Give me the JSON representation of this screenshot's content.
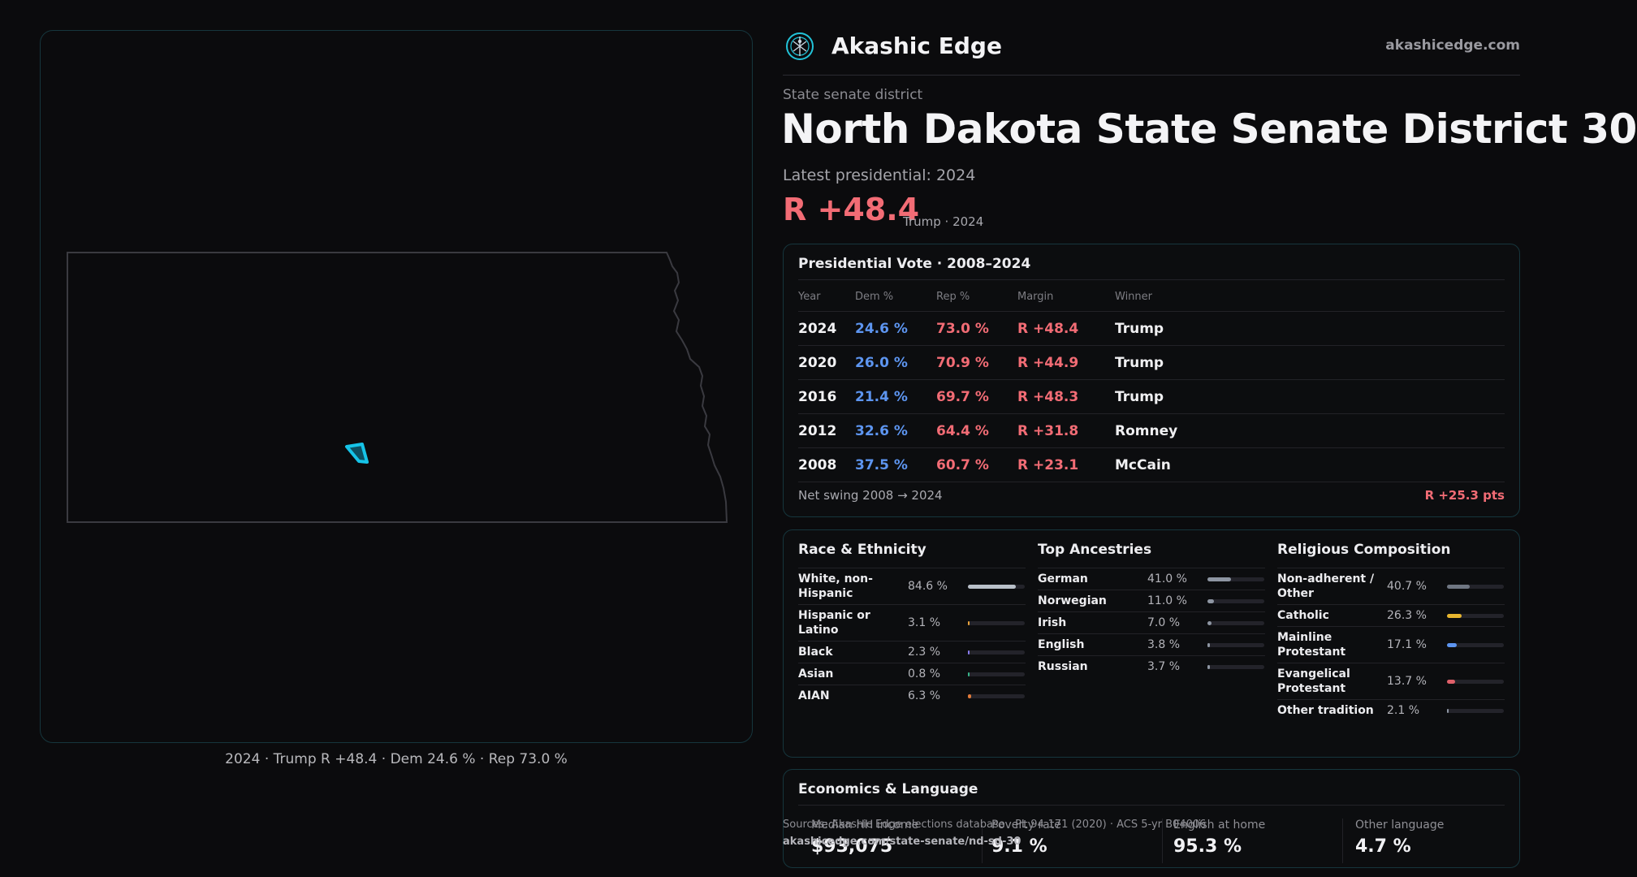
{
  "map": {
    "caption": "2024 · Trump R +48.4 · Dem 24.6 % · Rep 73.0 %",
    "district_color": "#16c4e8",
    "outline_color": "#3a3a40"
  },
  "header": {
    "brand": "Akashic Edge",
    "site": "akashicedge.com",
    "logo_icon": "brand-logo-icon"
  },
  "hero": {
    "eyebrow": "State senate district",
    "title": "North Dakota State Senate District 30",
    "latest": "Latest presidential: 2024",
    "margin": "R +48.4",
    "margin_sub": "Trump · 2024"
  },
  "presidential": {
    "title": "Presidential Vote · 2008–2024",
    "columns": [
      "Year",
      "Dem %",
      "Rep %",
      "Margin",
      "Winner"
    ],
    "rows": [
      {
        "year": "2024",
        "dem": "24.6 %",
        "rep": "73.0 %",
        "margin": "R +48.4",
        "winner": "Trump"
      },
      {
        "year": "2020",
        "dem": "26.0 %",
        "rep": "70.9 %",
        "margin": "R +44.9",
        "winner": "Trump"
      },
      {
        "year": "2016",
        "dem": "21.4 %",
        "rep": "69.7 %",
        "margin": "R +48.3",
        "winner": "Trump"
      },
      {
        "year": "2012",
        "dem": "32.6 %",
        "rep": "64.4 %",
        "margin": "R +31.8",
        "winner": "Romney"
      },
      {
        "year": "2008",
        "dem": "37.5 %",
        "rep": "60.7 %",
        "margin": "R +23.1",
        "winner": "McCain"
      }
    ],
    "swing_label": "Net swing 2008 → 2024",
    "swing_value": "R +25.3 pts"
  },
  "race": {
    "title": "Race & Ethnicity",
    "items": [
      {
        "label": "White, non-Hispanic",
        "value": "84.6 %",
        "fraction": 0.846,
        "color": "#b9c0c9"
      },
      {
        "label": "Hispanic or Latino",
        "value": "3.1 %",
        "fraction": 0.031,
        "color": "#e8a33c"
      },
      {
        "label": "Black",
        "value": "2.3 %",
        "fraction": 0.023,
        "color": "#8a7cf0"
      },
      {
        "label": "Asian",
        "value": "0.8 %",
        "fraction": 0.008,
        "color": "#37b58a"
      },
      {
        "label": "AIAN",
        "value": "6.3 %",
        "fraction": 0.063,
        "color": "#e07a3a"
      }
    ]
  },
  "ancestry": {
    "title": "Top Ancestries",
    "items": [
      {
        "label": "German",
        "value": "41.0 %",
        "fraction": 0.41,
        "color": "#8e96a3"
      },
      {
        "label": "Norwegian",
        "value": "11.0 %",
        "fraction": 0.11,
        "color": "#8e96a3"
      },
      {
        "label": "Irish",
        "value": "7.0 %",
        "fraction": 0.07,
        "color": "#8e96a3"
      },
      {
        "label": "English",
        "value": "3.8 %",
        "fraction": 0.038,
        "color": "#8e96a3"
      },
      {
        "label": "Russian",
        "value": "3.7 %",
        "fraction": 0.037,
        "color": "#8e96a3"
      }
    ]
  },
  "religion": {
    "title": "Religious Composition",
    "items": [
      {
        "label": "Non-adherent / Other",
        "value": "40.7 %",
        "fraction": 0.407,
        "color": "#6f7682"
      },
      {
        "label": "Catholic",
        "value": "26.3 %",
        "fraction": 0.263,
        "color": "#e8b62f"
      },
      {
        "label": "Mainline Protestant",
        "value": "17.1 %",
        "fraction": 0.171,
        "color": "#5d95f0"
      },
      {
        "label": "Evangelical Protestant",
        "value": "13.7 %",
        "fraction": 0.137,
        "color": "#e0606a"
      },
      {
        "label": "Other tradition",
        "value": "2.1 %",
        "fraction": 0.021,
        "color": "#8e96a3"
      }
    ]
  },
  "economics": {
    "title": "Economics & Language",
    "stats": [
      {
        "label": "Median HH income",
        "value": "$93,075"
      },
      {
        "label": "Poverty rate",
        "value": "9.1 %"
      },
      {
        "label": "English at home",
        "value": "95.3 %"
      },
      {
        "label": "Other language",
        "value": "4.7 %"
      }
    ]
  },
  "source": {
    "text": "Sources: Akashic Edge elections database · PL 94-171 (2020) · ACS 5-yr B04006",
    "url": "akashicedge.com/state-senate/nd-sd-30"
  }
}
